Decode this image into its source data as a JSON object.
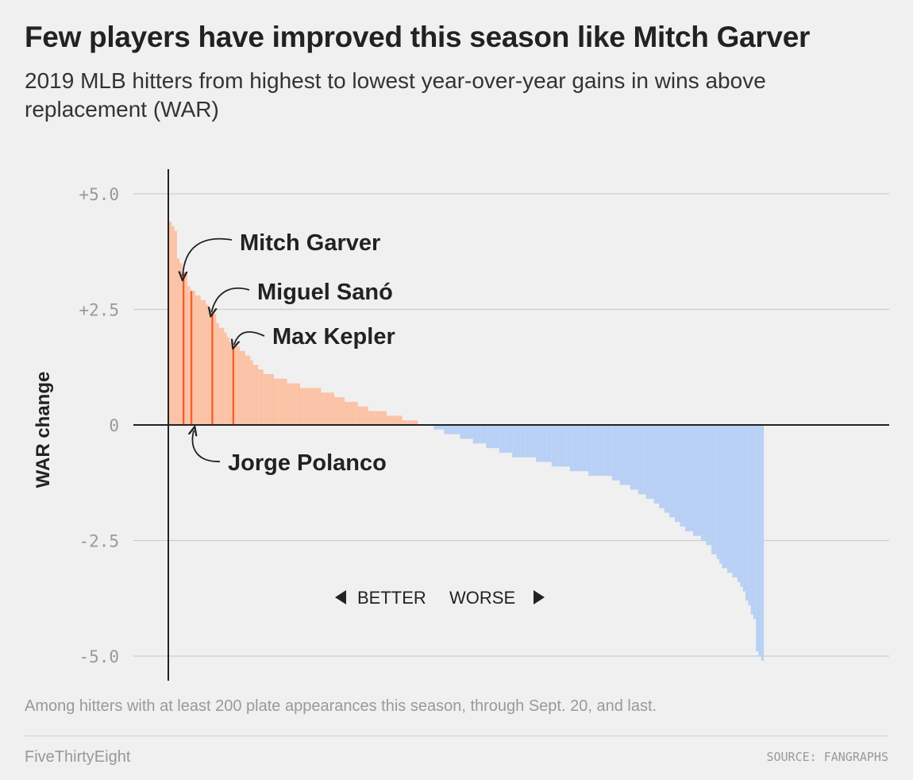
{
  "header": {
    "title": "Few players have improved this season like Mitch Garver",
    "subtitle": "2019 MLB hitters from highest to lowest year-over-year gains in wins above replacement (WAR)"
  },
  "footer": {
    "note": "Among hitters with at least 200 plate appearances this season, through Sept. 20, and last.",
    "brand": "FiveThirtyEight",
    "source": "SOURCE: FANGRAPHS"
  },
  "colors": {
    "better": "#fbc2a6",
    "better_highlight": "#f0622c",
    "worse": "#b8d0f5",
    "axis": "#222222",
    "grid": "#cccccc"
  },
  "chart_data": {
    "type": "bar",
    "ylabel": "WAR change",
    "ylim": [
      -5.2,
      5.5
    ],
    "yticks": [
      {
        "value": 5.0,
        "label": "+5.0"
      },
      {
        "value": 2.5,
        "label": "+2.5"
      },
      {
        "value": 0,
        "label": "0"
      },
      {
        "value": -2.5,
        "label": "-2.5"
      },
      {
        "value": -5.0,
        "label": "-5.0"
      }
    ],
    "grid": true,
    "direction_labels": {
      "better": "BETTER",
      "worse": "WORSE"
    },
    "highlights": [
      {
        "name": "Mitch Garver",
        "value": 3.3
      },
      {
        "name": "Jorge Polanco",
        "value": 2.9
      },
      {
        "name": "Miguel Sanó",
        "value": 2.4
      },
      {
        "name": "Max Kepler",
        "value": 1.7
      }
    ],
    "values": [
      4.4,
      4.3,
      4.2,
      3.6,
      3.5,
      3.3,
      3.3,
      3.0,
      2.9,
      2.9,
      2.8,
      2.8,
      2.7,
      2.7,
      2.6,
      2.5,
      2.4,
      2.4,
      2.2,
      2.1,
      2.1,
      2.0,
      1.9,
      1.8,
      1.7,
      1.7,
      1.7,
      1.6,
      1.6,
      1.5,
      1.5,
      1.4,
      1.3,
      1.3,
      1.2,
      1.2,
      1.1,
      1.1,
      1.1,
      1.1,
      1.0,
      1.0,
      1.0,
      1.0,
      1.0,
      0.9,
      0.9,
      0.9,
      0.9,
      0.9,
      0.8,
      0.8,
      0.8,
      0.8,
      0.8,
      0.8,
      0.8,
      0.8,
      0.7,
      0.7,
      0.7,
      0.7,
      0.7,
      0.6,
      0.6,
      0.6,
      0.6,
      0.5,
      0.5,
      0.5,
      0.5,
      0.5,
      0.4,
      0.4,
      0.4,
      0.4,
      0.3,
      0.3,
      0.3,
      0.3,
      0.3,
      0.3,
      0.3,
      0.2,
      0.2,
      0.2,
      0.2,
      0.2,
      0.2,
      0.1,
      0.1,
      0.1,
      0.1,
      0.1,
      0.1,
      0.0,
      0.0,
      0.0,
      0.0,
      0.0,
      0.0,
      -0.1,
      -0.1,
      -0.1,
      -0.1,
      -0.2,
      -0.2,
      -0.2,
      -0.2,
      -0.2,
      -0.2,
      -0.3,
      -0.3,
      -0.3,
      -0.3,
      -0.3,
      -0.4,
      -0.4,
      -0.4,
      -0.4,
      -0.4,
      -0.5,
      -0.5,
      -0.5,
      -0.5,
      -0.5,
      -0.6,
      -0.6,
      -0.6,
      -0.6,
      -0.6,
      -0.7,
      -0.7,
      -0.7,
      -0.7,
      -0.7,
      -0.7,
      -0.7,
      -0.7,
      -0.7,
      -0.8,
      -0.8,
      -0.8,
      -0.8,
      -0.8,
      -0.8,
      -0.9,
      -0.9,
      -0.9,
      -0.9,
      -0.9,
      -0.9,
      -0.9,
      -1.0,
      -1.0,
      -1.0,
      -1.0,
      -1.0,
      -1.0,
      -1.0,
      -1.1,
      -1.1,
      -1.1,
      -1.1,
      -1.1,
      -1.1,
      -1.1,
      -1.1,
      -1.1,
      -1.2,
      -1.2,
      -1.2,
      -1.3,
      -1.3,
      -1.3,
      -1.3,
      -1.4,
      -1.4,
      -1.4,
      -1.5,
      -1.5,
      -1.5,
      -1.6,
      -1.6,
      -1.6,
      -1.7,
      -1.7,
      -1.8,
      -1.8,
      -1.9,
      -1.9,
      -2.0,
      -2.0,
      -2.1,
      -2.1,
      -2.2,
      -2.2,
      -2.3,
      -2.3,
      -2.3,
      -2.4,
      -2.4,
      -2.4,
      -2.5,
      -2.5,
      -2.6,
      -2.6,
      -2.8,
      -2.8,
      -2.9,
      -3.0,
      -3.1,
      -3.1,
      -3.2,
      -3.2,
      -3.3,
      -3.3,
      -3.4,
      -3.5,
      -3.6,
      -3.8,
      -3.9,
      -4.1,
      -4.2,
      -4.9,
      -5.0,
      -5.1
    ]
  }
}
